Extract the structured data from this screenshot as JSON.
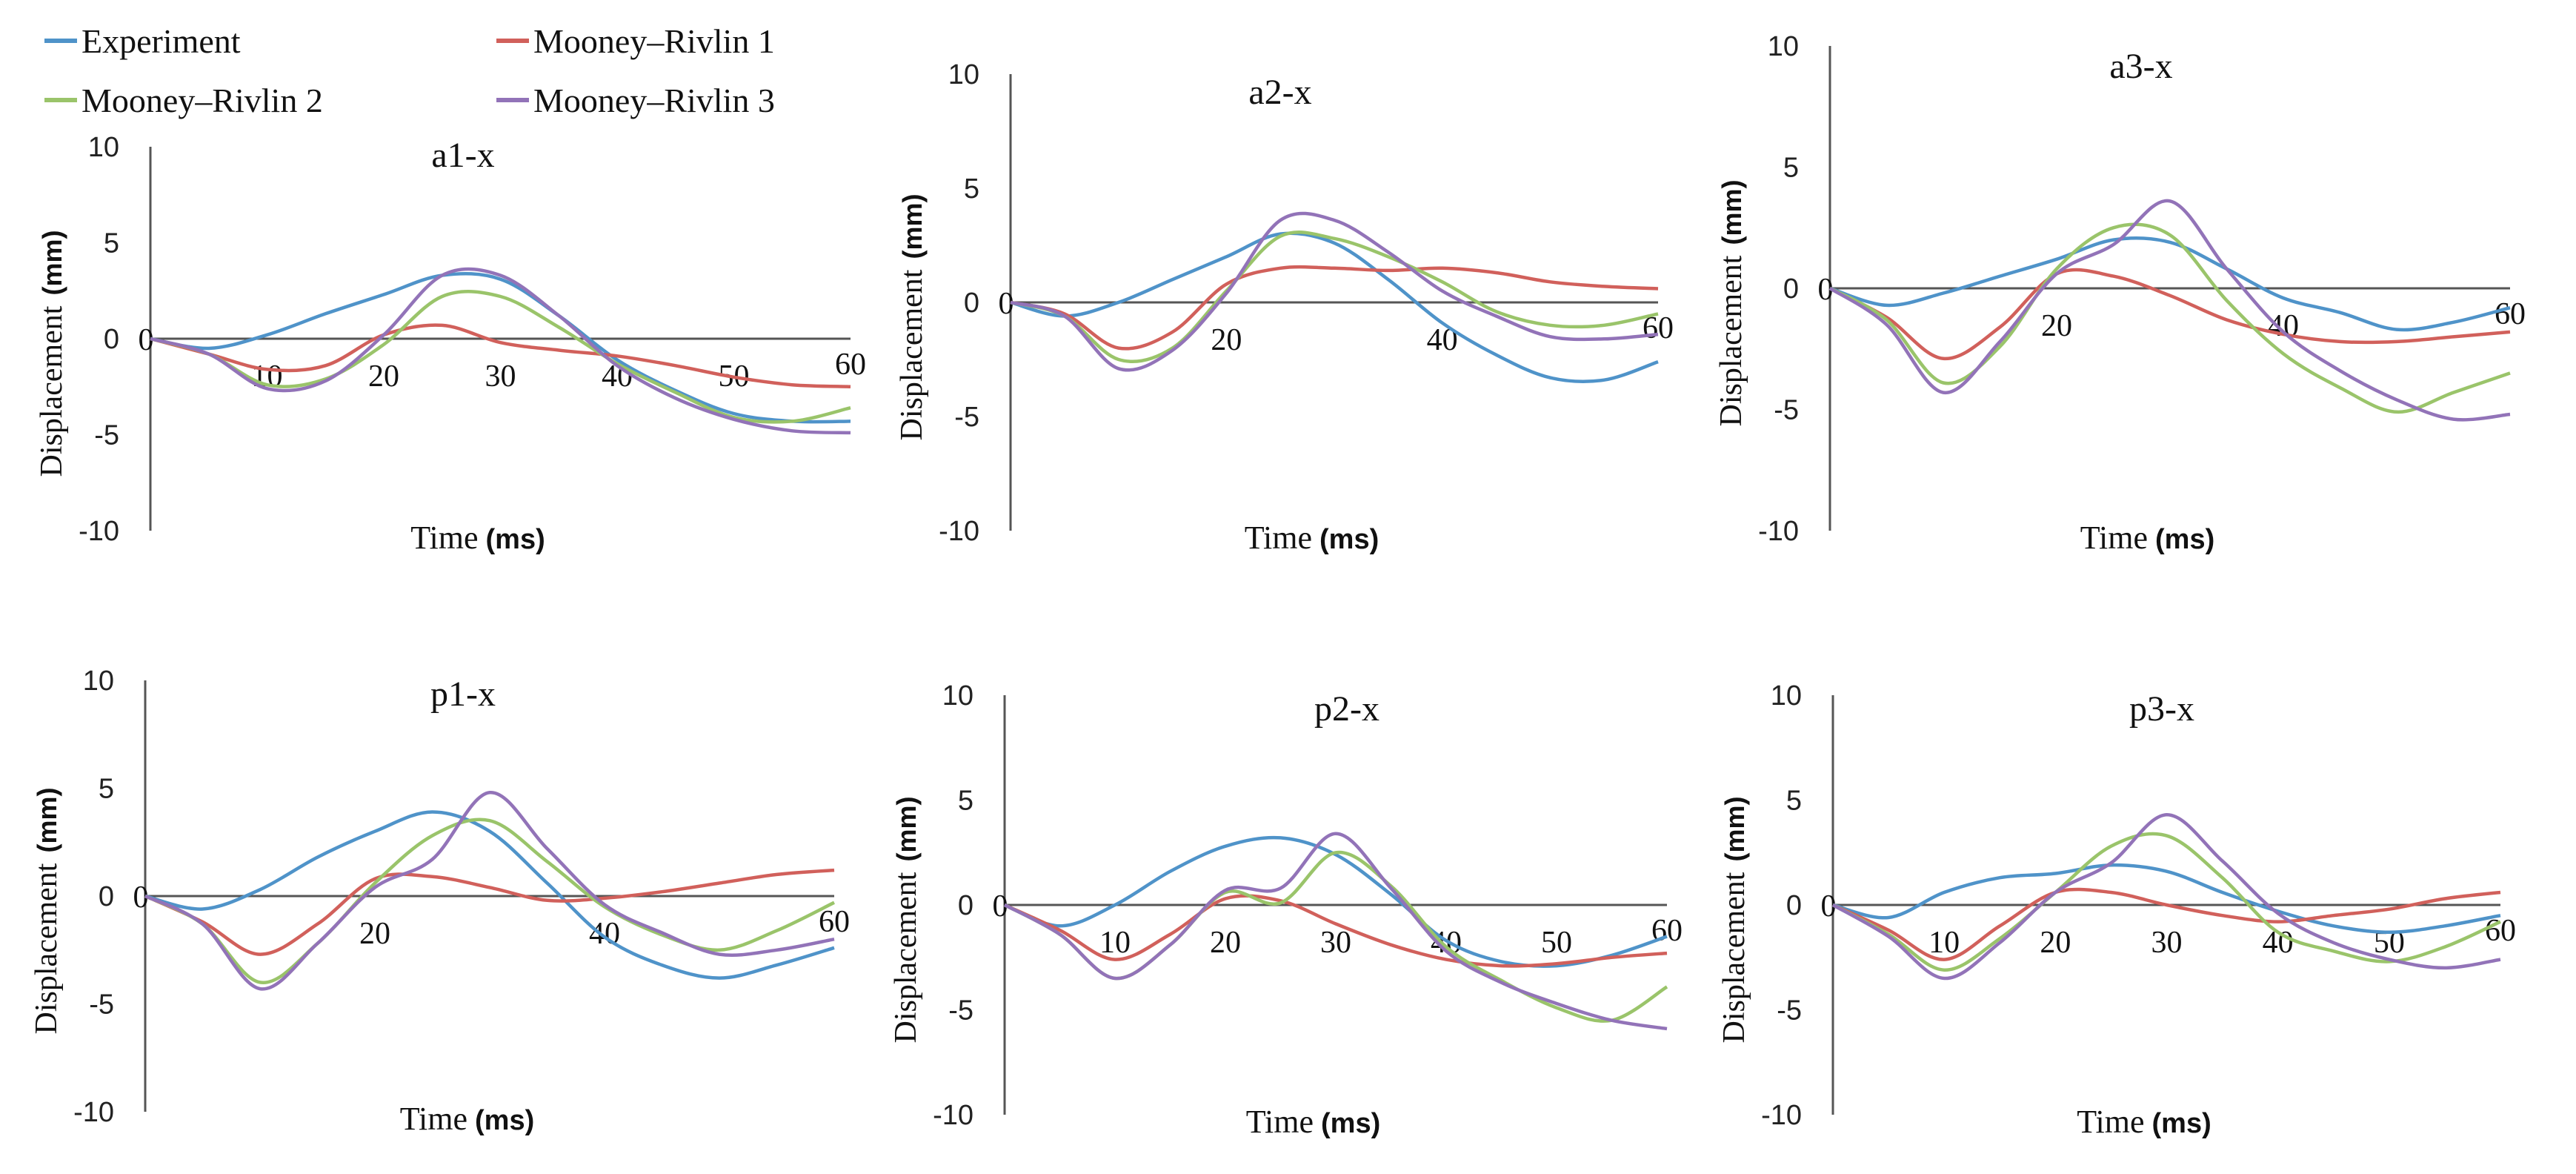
{
  "legend": [
    {
      "name": "Experiment",
      "color": "#4f93c9"
    },
    {
      "name": "Mooney–Rivlin 1",
      "color": "#d1605b"
    },
    {
      "name": "Mooney–Rivlin 2",
      "color": "#9ac46a"
    },
    {
      "name": "Mooney–Rivlin 3",
      "color": "#9273b8"
    }
  ],
  "chart_data": [
    {
      "type": "line",
      "title": "a1-x",
      "xlabel": "Time",
      "xlabel_unit": "(ms)",
      "ylabel": "Displacement",
      "ylabel_unit": "(mm)",
      "xlim": [
        0,
        60
      ],
      "ylim": [
        -10,
        10
      ],
      "xticks": [
        0,
        10,
        20,
        30,
        40,
        50,
        60
      ],
      "yticks": [
        10,
        5,
        0,
        -5,
        -10
      ],
      "x": [
        0,
        5,
        10,
        15,
        20,
        25,
        30,
        35,
        40,
        45,
        50,
        55,
        60
      ],
      "series": [
        {
          "name": "Experiment",
          "color": "#4f93c9",
          "values": [
            0,
            -0.5,
            0.2,
            1.3,
            2.3,
            3.3,
            3.1,
            1.2,
            -1.1,
            -2.7,
            -3.9,
            -4.3,
            -4.3
          ]
        },
        {
          "name": "Mooney–Rivlin 1",
          "color": "#d1605b",
          "values": [
            0,
            -0.8,
            -1.6,
            -1.4,
            0.2,
            0.7,
            -0.2,
            -0.6,
            -0.9,
            -1.4,
            -2.0,
            -2.4,
            -2.5
          ]
        },
        {
          "name": "Mooney–Rivlin 2",
          "color": "#9ac46a",
          "values": [
            0,
            -0.8,
            -2.4,
            -2.1,
            -0.3,
            2.2,
            2.2,
            0.6,
            -1.3,
            -2.8,
            -4.1,
            -4.3,
            -3.6
          ]
        },
        {
          "name": "Mooney–Rivlin 3",
          "color": "#9273b8",
          "values": [
            0,
            -0.8,
            -2.6,
            -2.2,
            0.2,
            3.3,
            3.3,
            1.2,
            -1.4,
            -3.1,
            -4.2,
            -4.8,
            -4.9
          ]
        }
      ]
    },
    {
      "type": "line",
      "title": "a2-x",
      "xlabel": "Time",
      "xlabel_unit": "(ms)",
      "ylabel": "Displacement",
      "ylabel_unit": "(mm)",
      "xlim": [
        0,
        60
      ],
      "ylim": [
        -10,
        10
      ],
      "xticks": [
        0,
        20,
        40,
        60
      ],
      "yticks": [
        10,
        5,
        0,
        -5,
        -10
      ],
      "x": [
        0,
        5,
        10,
        15,
        20,
        25,
        30,
        35,
        40,
        45,
        50,
        55,
        60
      ],
      "series": [
        {
          "name": "Experiment",
          "color": "#4f93c9",
          "values": [
            0,
            -0.6,
            0.0,
            1.0,
            2.0,
            3.0,
            2.6,
            1.0,
            -0.9,
            -2.3,
            -3.3,
            -3.4,
            -2.6
          ]
        },
        {
          "name": "Mooney–Rivlin 1",
          "color": "#d1605b",
          "values": [
            0,
            -0.5,
            -2.0,
            -1.3,
            0.8,
            1.5,
            1.5,
            1.4,
            1.5,
            1.3,
            0.9,
            0.7,
            0.6
          ]
        },
        {
          "name": "Mooney–Rivlin 2",
          "color": "#9ac46a",
          "values": [
            0,
            -0.6,
            -2.5,
            -2.0,
            0.5,
            2.9,
            2.8,
            2.0,
            0.9,
            -0.4,
            -1.0,
            -1.0,
            -0.5
          ]
        },
        {
          "name": "Mooney–Rivlin 3",
          "color": "#9273b8",
          "values": [
            0,
            -0.6,
            -2.9,
            -2.1,
            0.4,
            3.6,
            3.6,
            2.2,
            0.5,
            -0.6,
            -1.5,
            -1.6,
            -1.4
          ]
        }
      ]
    },
    {
      "type": "line",
      "title": "a3-x",
      "xlabel": "Time",
      "xlabel_unit": "(ms)",
      "ylabel": "Displacement",
      "ylabel_unit": "(mm)",
      "xlim": [
        0,
        60
      ],
      "ylim": [
        -10,
        10
      ],
      "xticks": [
        0,
        20,
        40,
        60
      ],
      "yticks": [
        10,
        5,
        0,
        -5,
        -10
      ],
      "x": [
        0,
        5,
        10,
        15,
        20,
        25,
        30,
        35,
        40,
        45,
        50,
        55,
        60
      ],
      "series": [
        {
          "name": "Experiment",
          "color": "#4f93c9",
          "values": [
            0,
            -0.7,
            -0.2,
            0.5,
            1.2,
            2.0,
            1.9,
            0.8,
            -0.4,
            -1.0,
            -1.7,
            -1.4,
            -0.8
          ]
        },
        {
          "name": "Mooney–Rivlin 1",
          "color": "#d1605b",
          "values": [
            0,
            -1.2,
            -2.9,
            -1.6,
            0.6,
            0.5,
            -0.3,
            -1.3,
            -1.9,
            -2.2,
            -2.2,
            -2.0,
            -1.8
          ]
        },
        {
          "name": "Mooney–Rivlin 2",
          "color": "#9ac46a",
          "values": [
            0,
            -1.3,
            -3.9,
            -2.4,
            0.8,
            2.5,
            2.2,
            -0.5,
            -2.7,
            -4.1,
            -5.1,
            -4.3,
            -3.5
          ]
        },
        {
          "name": "Mooney–Rivlin 3",
          "color": "#9273b8",
          "values": [
            0,
            -1.5,
            -4.3,
            -2.2,
            0.6,
            1.8,
            3.6,
            0.8,
            -1.8,
            -3.4,
            -4.6,
            -5.4,
            -5.2
          ]
        }
      ]
    },
    {
      "type": "line",
      "title": "p1-x",
      "xlabel": "Time",
      "xlabel_unit": "(ms)",
      "ylabel": "Displacement",
      "ylabel_unit": "(mm)",
      "xlim": [
        0,
        60
      ],
      "ylim": [
        -10,
        10
      ],
      "xticks": [
        0,
        20,
        40,
        60
      ],
      "yticks": [
        10,
        5,
        0,
        -5,
        -10
      ],
      "x": [
        0,
        5,
        10,
        15,
        20,
        25,
        30,
        35,
        40,
        45,
        50,
        55,
        60
      ],
      "series": [
        {
          "name": "Experiment",
          "color": "#4f93c9",
          "values": [
            0,
            -0.6,
            0.3,
            1.8,
            3.0,
            3.9,
            3.0,
            0.6,
            -1.9,
            -3.2,
            -3.8,
            -3.2,
            -2.4
          ]
        },
        {
          "name": "Mooney–Rivlin 1",
          "color": "#d1605b",
          "values": [
            0,
            -1.2,
            -2.7,
            -1.3,
            0.8,
            0.9,
            0.4,
            -0.2,
            -0.1,
            0.2,
            0.6,
            1.0,
            1.2
          ]
        },
        {
          "name": "Mooney–Rivlin 2",
          "color": "#9ac46a",
          "values": [
            0,
            -1.3,
            -4.0,
            -2.2,
            0.6,
            2.8,
            3.5,
            1.6,
            -0.5,
            -1.8,
            -2.5,
            -1.6,
            -0.3
          ]
        },
        {
          "name": "Mooney–Rivlin 3",
          "color": "#9273b8",
          "values": [
            0,
            -1.3,
            -4.3,
            -2.2,
            0.4,
            1.7,
            4.8,
            2.2,
            -0.4,
            -1.7,
            -2.7,
            -2.5,
            -2.0
          ]
        }
      ]
    },
    {
      "type": "line",
      "title": "p2-x",
      "xlabel": "Time",
      "xlabel_unit": "(ms)",
      "ylabel": "Displacement",
      "ylabel_unit": "(mm)",
      "xlim": [
        0,
        60
      ],
      "ylim": [
        -10,
        10
      ],
      "xticks": [
        0,
        10,
        20,
        30,
        40,
        50,
        60
      ],
      "yticks": [
        10,
        5,
        0,
        -5,
        -10
      ],
      "x": [
        0,
        5,
        10,
        15,
        20,
        25,
        30,
        35,
        40,
        45,
        50,
        55,
        60
      ],
      "series": [
        {
          "name": "Experiment",
          "color": "#4f93c9",
          "values": [
            0,
            -1.0,
            0.0,
            1.6,
            2.8,
            3.2,
            2.4,
            0.5,
            -1.7,
            -2.7,
            -2.9,
            -2.4,
            -1.5
          ]
        },
        {
          "name": "Mooney–Rivlin 1",
          "color": "#d1605b",
          "values": [
            0,
            -1.2,
            -2.6,
            -1.4,
            0.3,
            0.2,
            -0.9,
            -1.9,
            -2.6,
            -2.9,
            -2.8,
            -2.5,
            -2.3
          ]
        },
        {
          "name": "Mooney–Rivlin 2",
          "color": "#9ac46a",
          "values": [
            0,
            -1.4,
            -3.5,
            -1.9,
            0.6,
            0.1,
            2.5,
            0.9,
            -2.0,
            -3.6,
            -4.9,
            -5.5,
            -3.9
          ]
        },
        {
          "name": "Mooney–Rivlin 3",
          "color": "#9273b8",
          "values": [
            0,
            -1.4,
            -3.5,
            -1.9,
            0.7,
            0.8,
            3.4,
            0.8,
            -2.2,
            -3.7,
            -4.7,
            -5.5,
            -5.9
          ]
        }
      ]
    },
    {
      "type": "line",
      "title": "p3-x",
      "xlabel": "Time",
      "xlabel_unit": "(ms)",
      "ylabel": "Displacement",
      "ylabel_unit": "(mm)",
      "xlim": [
        0,
        60
      ],
      "ylim": [
        -10,
        10
      ],
      "xticks": [
        0,
        10,
        20,
        30,
        40,
        50,
        60
      ],
      "yticks": [
        10,
        5,
        0,
        -5,
        -10
      ],
      "x": [
        0,
        5,
        10,
        15,
        20,
        25,
        30,
        35,
        40,
        45,
        50,
        55,
        60
      ],
      "series": [
        {
          "name": "Experiment",
          "color": "#4f93c9",
          "values": [
            0,
            -0.6,
            0.6,
            1.3,
            1.5,
            1.9,
            1.6,
            0.6,
            -0.3,
            -1.0,
            -1.3,
            -1.0,
            -0.5
          ]
        },
        {
          "name": "Mooney–Rivlin 1",
          "color": "#d1605b",
          "values": [
            0,
            -1.2,
            -2.6,
            -1.0,
            0.6,
            0.6,
            0.0,
            -0.5,
            -0.8,
            -0.5,
            -0.2,
            0.3,
            0.6
          ]
        },
        {
          "name": "Mooney–Rivlin 2",
          "color": "#9ac46a",
          "values": [
            0,
            -1.4,
            -3.1,
            -1.6,
            0.6,
            2.8,
            3.3,
            1.3,
            -1.3,
            -2.2,
            -2.7,
            -2.0,
            -0.8
          ]
        },
        {
          "name": "Mooney–Rivlin 3",
          "color": "#9273b8",
          "values": [
            0,
            -1.5,
            -3.5,
            -1.8,
            0.6,
            2.0,
            4.3,
            2.1,
            -0.4,
            -1.8,
            -2.6,
            -3.0,
            -2.6
          ]
        }
      ]
    }
  ]
}
